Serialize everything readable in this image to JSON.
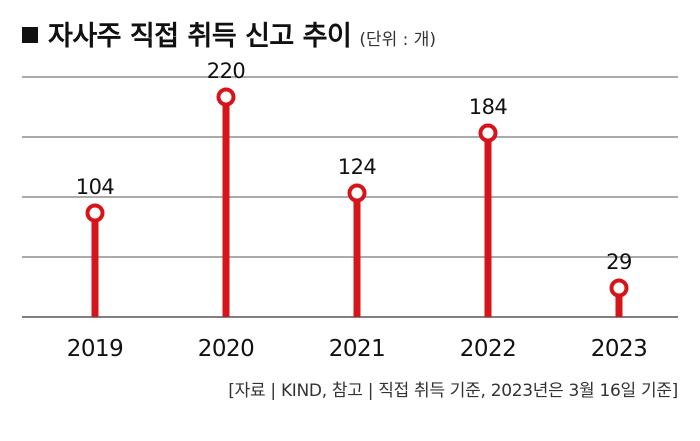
{
  "header": {
    "title": "자사주 직접 취득 신고 추이",
    "unit": "(단위 : 개)"
  },
  "colors": {
    "accent": "#d7141a",
    "gridline": "#555555",
    "text": "#111111"
  },
  "chart_data": {
    "type": "lollipop",
    "title": "자사주 직접 취득 신고 추이",
    "unit_label": "(단위 : 개)",
    "categories": [
      "2019",
      "2020",
      "2021",
      "2022",
      "2023"
    ],
    "values": [
      104,
      220,
      124,
      184,
      29
    ],
    "data_labels": [
      "104",
      "220",
      "124",
      "184",
      "29"
    ],
    "ylim": [
      0,
      240
    ],
    "grid": true,
    "legend": "none"
  },
  "footer": {
    "source": "[자료 | KIND, 참고 | 직접 취득 기준, 2023년은 3월 16일 기준]"
  }
}
